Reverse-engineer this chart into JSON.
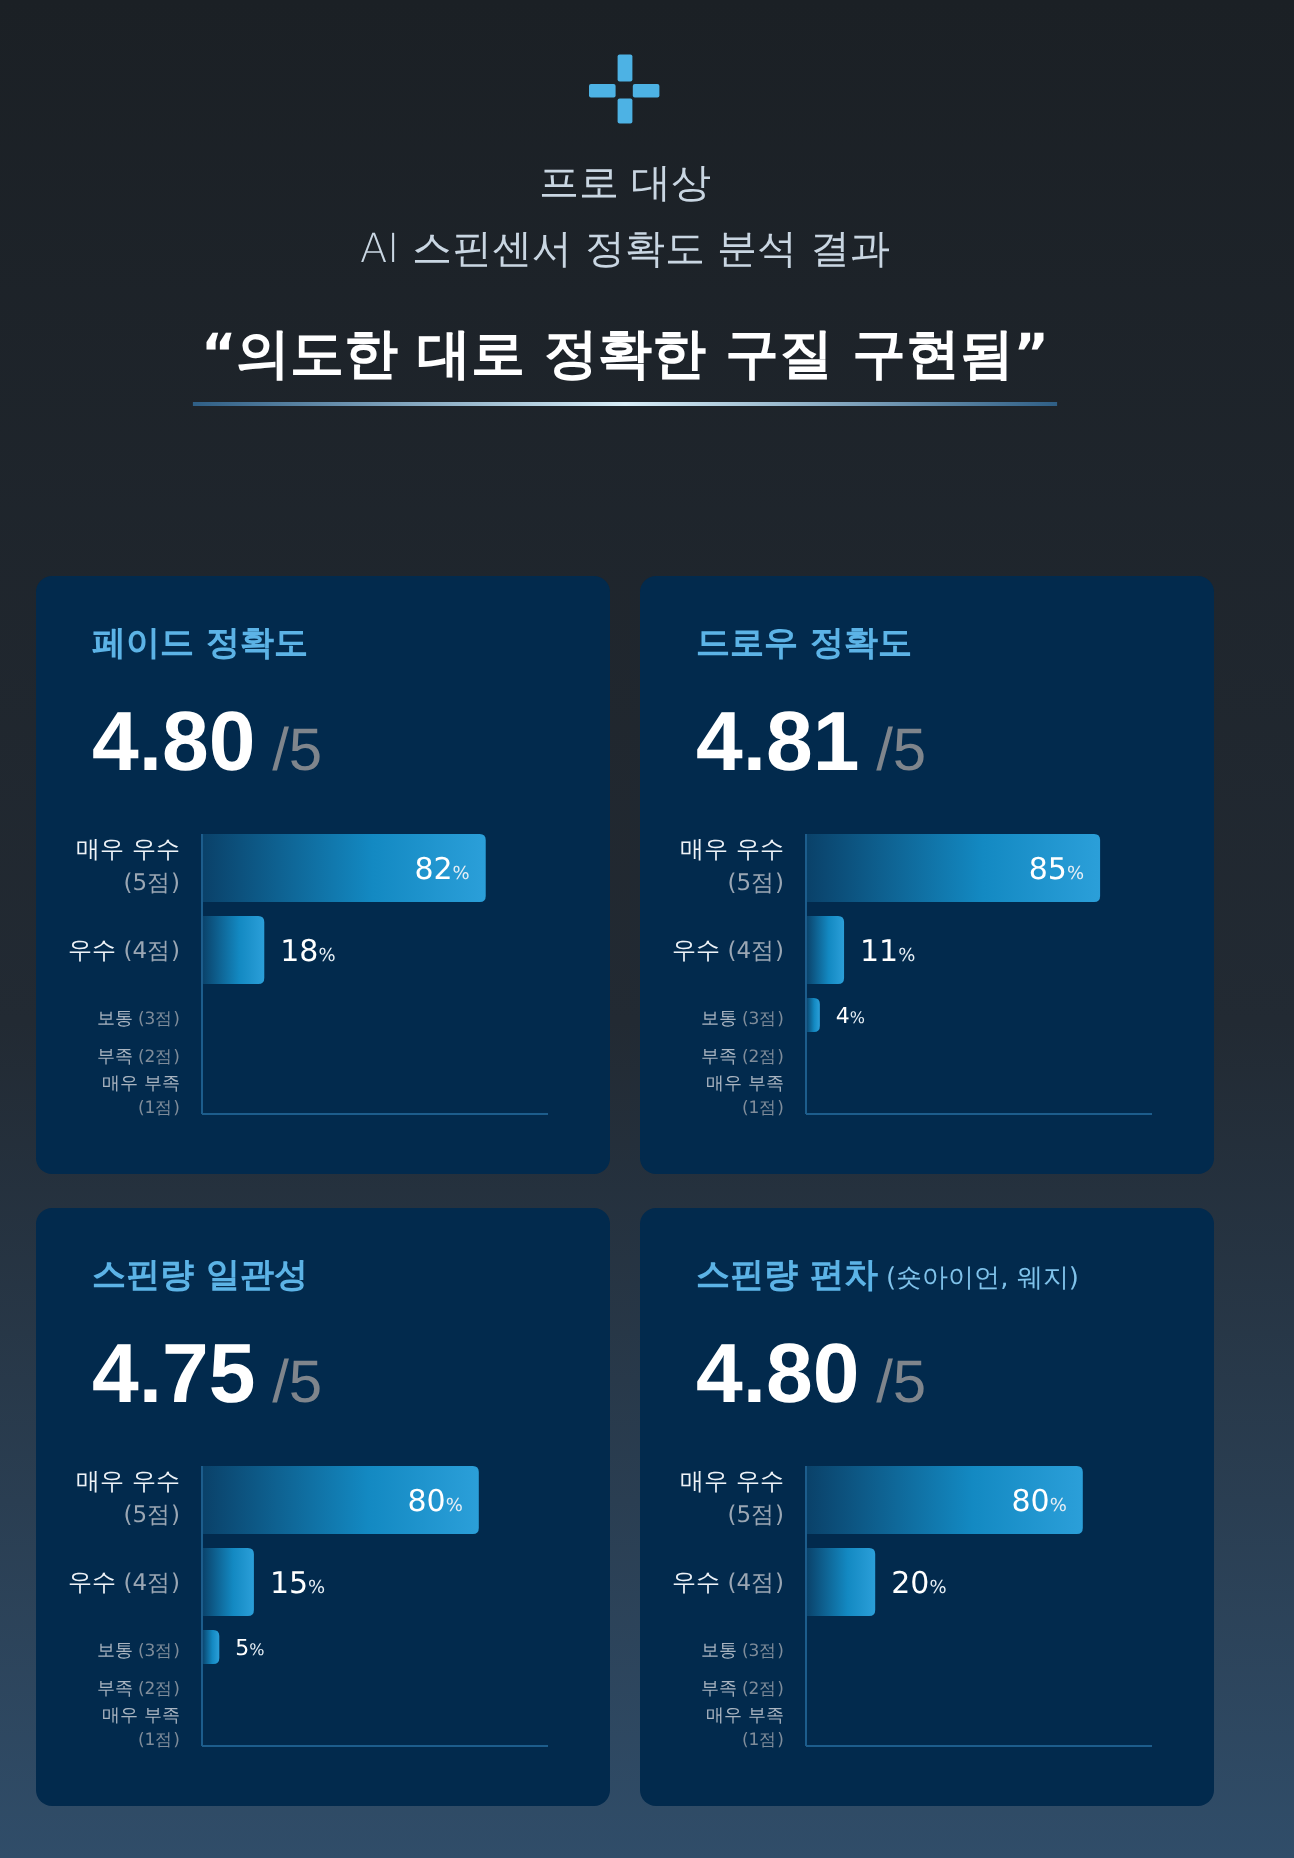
{
  "chart_data": [
    {
      "type": "other",
      "title": "프로 대상\nAI 스핀센서 정확도 분석 결과",
      "subtitle": "“의도한 대로 정확한 구질 구현됨”"
    },
    {
      "type": "bar",
      "orientation": "horizontal",
      "title": "페이드 정확도",
      "subtitle": "4.80 /5",
      "categories": [
        "매우 우수 (5점)",
        "우수 (4점)",
        "보통 (3점)",
        "부족 (2점)",
        "매우 부족 (1점)"
      ],
      "values": [
        82,
        18,
        0,
        0,
        0
      ],
      "value_labels": [
        "82%",
        "18%",
        null,
        null,
        null
      ],
      "color": "#2b9fd9",
      "xlim": [
        0,
        100
      ],
      "tick_labels": "y"
    },
    {
      "type": "bar",
      "orientation": "horizontal",
      "title": "드로우 정확도",
      "subtitle": "4.81 /5",
      "categories": [
        "매우 우수 (5점)",
        "우수 (4점)",
        "보통 (3점)",
        "부족 (2점)",
        "매우 부족 (1점)"
      ],
      "values": [
        85,
        11,
        4,
        0,
        0
      ],
      "value_labels": [
        "85%",
        "11%",
        "4%",
        null,
        null
      ],
      "color": "#2b9fd9",
      "xlim": [
        0,
        100
      ],
      "tick_labels": "y"
    },
    {
      "type": "bar",
      "orientation": "horizontal",
      "title": "스핀량 일관성",
      "subtitle": "4.75 /5",
      "categories": [
        "매우 우수 (5점)",
        "우수 (4점)",
        "보통 (3점)",
        "부족 (2점)",
        "매우 부족 (1점)"
      ],
      "values": [
        80,
        15,
        5,
        0,
        0
      ],
      "value_labels": [
        "80%",
        "15%",
        "5%",
        null,
        null
      ],
      "color": "#2b9fd9",
      "xlim": [
        0,
        100
      ],
      "tick_labels": "y"
    },
    {
      "type": "bar",
      "orientation": "horizontal",
      "title": "스핀량 편차 (숏아이언, 웨지)",
      "subtitle": "4.80 /5",
      "categories": [
        "매우 우수 (5점)",
        "우수 (4점)",
        "보통 (3점)",
        "부족 (2점)",
        "매우 부족 (1점)"
      ],
      "values": [
        80,
        20,
        0,
        0,
        0
      ],
      "value_labels": [
        "80%",
        "20%",
        null,
        null,
        null
      ],
      "color": "#2b9fd9",
      "xlim": [
        0,
        100
      ],
      "tick_labels": "y"
    }
  ]
}
